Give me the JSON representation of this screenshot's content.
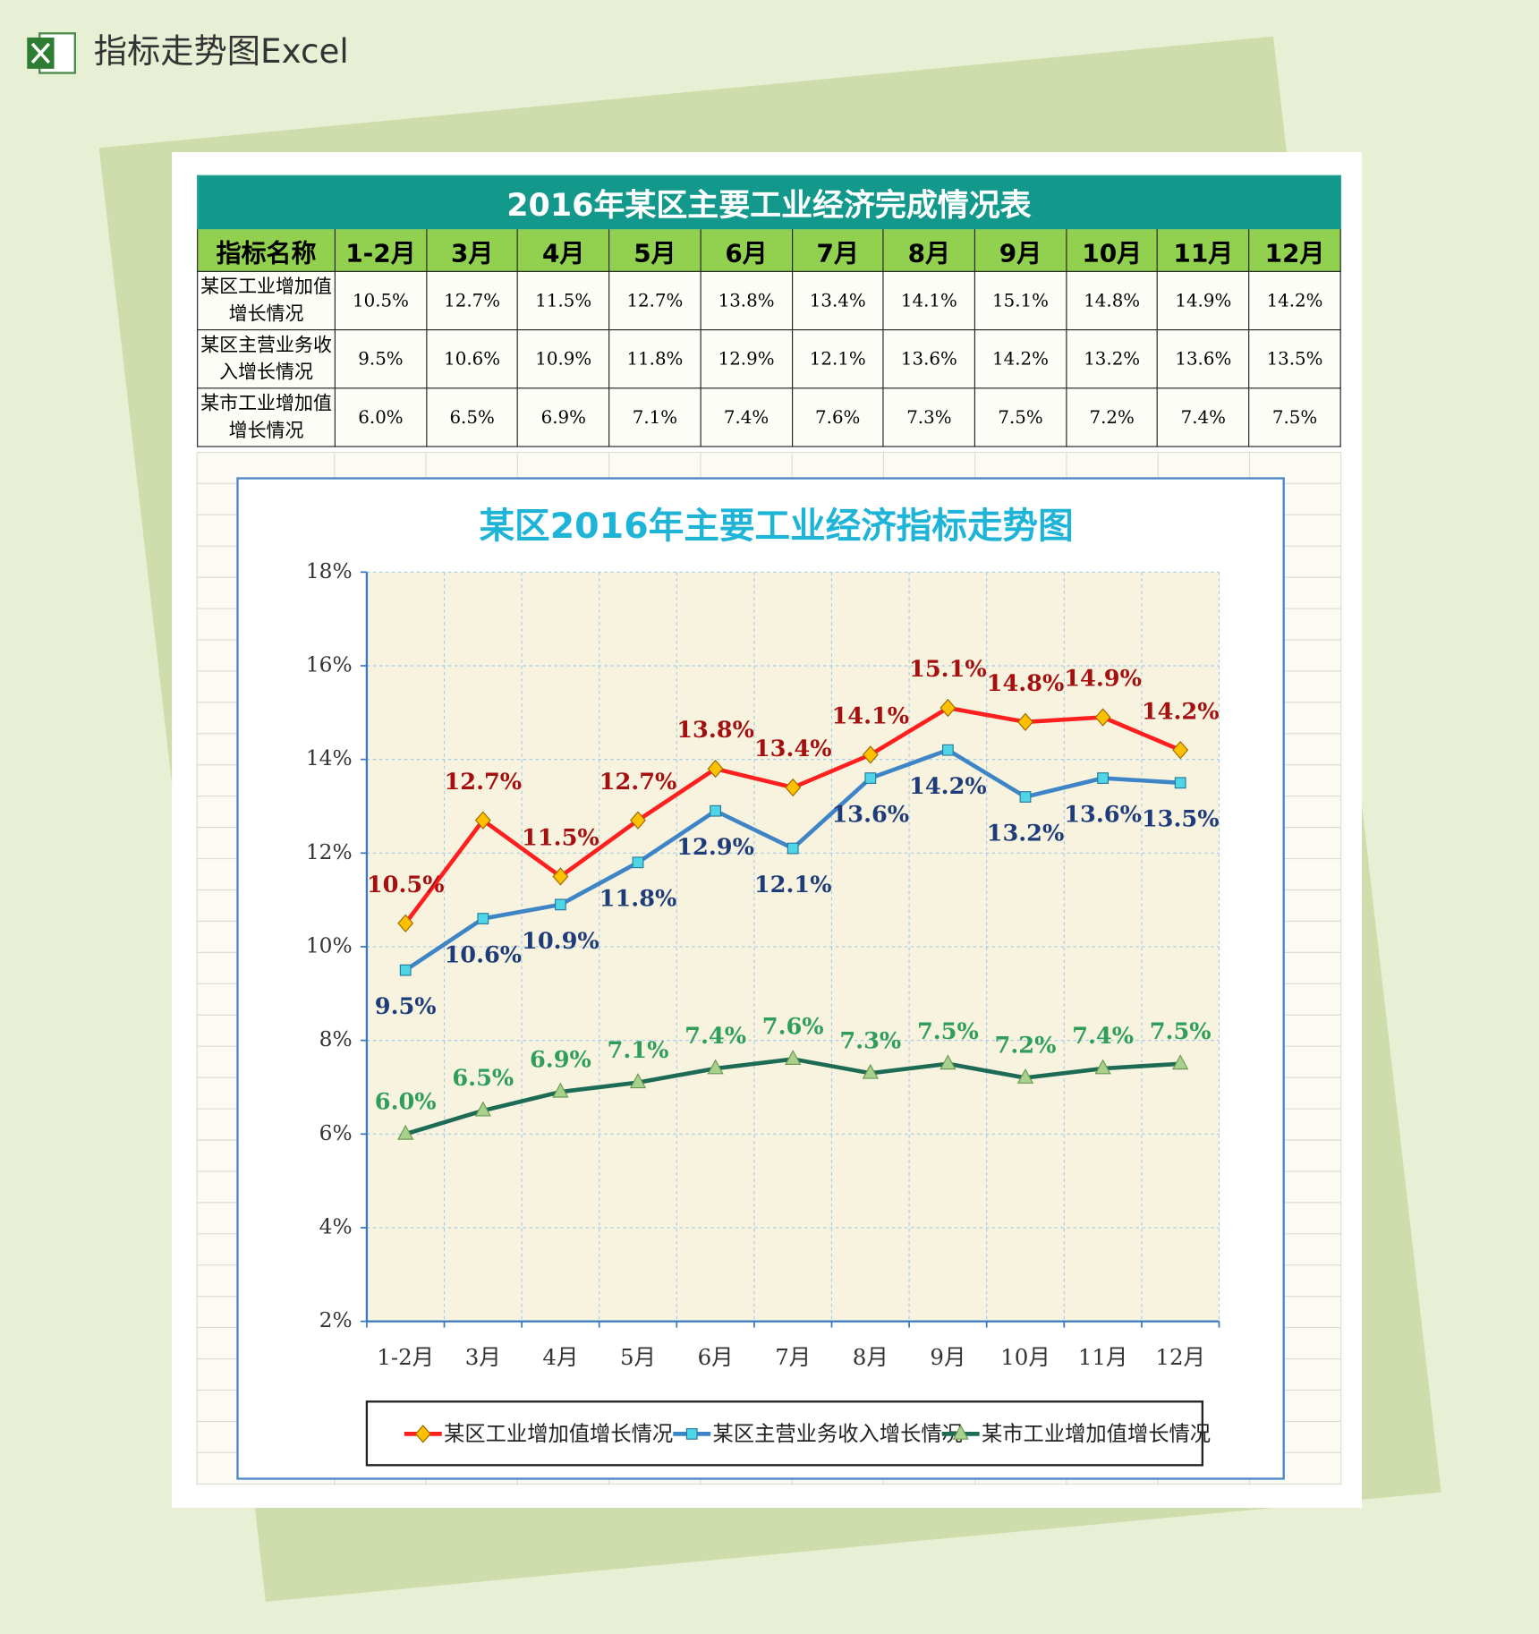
{
  "header": {
    "title": "指标走势图Excel"
  },
  "table": {
    "title": "2016年某区主要工业经济完成情况表",
    "columns": [
      "指标名称",
      "1-2月",
      "3月",
      "4月",
      "5月",
      "6月",
      "7月",
      "8月",
      "9月",
      "10月",
      "11月",
      "12月"
    ],
    "rows": [
      [
        "某区工业增加值增长情况",
        "10.5%",
        "12.7%",
        "11.5%",
        "12.7%",
        "13.8%",
        "13.4%",
        "14.1%",
        "15.1%",
        "14.8%",
        "14.9%",
        "14.2%"
      ],
      [
        "某区主营业务收入增长情况",
        "9.5%",
        "10.6%",
        "10.9%",
        "11.8%",
        "12.9%",
        "12.1%",
        "13.6%",
        "14.2%",
        "13.2%",
        "13.6%",
        "13.5%"
      ],
      [
        "某市工业增加值增长情况",
        "6.0%",
        "6.5%",
        "6.9%",
        "7.1%",
        "7.4%",
        "7.6%",
        "7.3%",
        "7.5%",
        "7.2%",
        "7.4%",
        "7.5%"
      ]
    ]
  },
  "chart_data": {
    "type": "line",
    "title": "某区2016年主要工业经济指标走势图",
    "categories": [
      "1-2月",
      "3月",
      "4月",
      "5月",
      "6月",
      "7月",
      "8月",
      "9月",
      "10月",
      "11月",
      "12月"
    ],
    "series": [
      {
        "name": "某区工业增加值增长情况",
        "color": "#ff1f1f",
        "marker": "diamond",
        "marker_color": "#ffc000",
        "label_color": "#a50f0f",
        "values": [
          10.5,
          12.7,
          11.5,
          12.7,
          13.8,
          13.4,
          14.1,
          15.1,
          14.8,
          14.9,
          14.2
        ],
        "value_labels": [
          "10.5%",
          "12.7%",
          "11.5%",
          "12.7%",
          "13.8%",
          "13.4%",
          "14.1%",
          "15.1%",
          "14.8%",
          "14.9%",
          "14.2%"
        ]
      },
      {
        "name": "某区主营业务收入增长情况",
        "color": "#3d85c6",
        "marker": "square",
        "marker_color": "#4fd6e6",
        "label_color": "#1f3c7a",
        "values": [
          9.5,
          10.6,
          10.9,
          11.8,
          12.9,
          12.1,
          13.6,
          14.2,
          13.2,
          13.6,
          13.5
        ],
        "value_labels": [
          "9.5%",
          "10.6%",
          "10.9%",
          "11.8%",
          "12.9%",
          "12.1%",
          "13.6%",
          "14.2%",
          "13.2%",
          "13.6%",
          "13.5%"
        ]
      },
      {
        "name": "某市工业增加值增长情况",
        "color": "#1e6b55",
        "marker": "triangle",
        "marker_color": "#a9d18e",
        "label_color": "#2f9e5a",
        "values": [
          6.0,
          6.5,
          6.9,
          7.1,
          7.4,
          7.6,
          7.3,
          7.5,
          7.2,
          7.4,
          7.5
        ],
        "value_labels": [
          "6.0%",
          "6.5%",
          "6.9%",
          "7.1%",
          "7.4%",
          "7.6%",
          "7.3%",
          "7.5%",
          "7.2%",
          "7.4%",
          "7.5%"
        ]
      }
    ],
    "ylim": [
      2,
      18
    ],
    "yticks": [
      {
        "value": 2,
        "label": "2%"
      },
      {
        "value": 4,
        "label": "4%"
      },
      {
        "value": 6,
        "label": "6%"
      },
      {
        "value": 8,
        "label": "8%"
      },
      {
        "value": 10,
        "label": "10%"
      },
      {
        "value": 12,
        "label": "12%"
      },
      {
        "value": 14,
        "label": "14%"
      },
      {
        "value": 16,
        "label": "16%"
      },
      {
        "value": 18,
        "label": "18%"
      }
    ],
    "grid": true,
    "legend": "bottom"
  }
}
